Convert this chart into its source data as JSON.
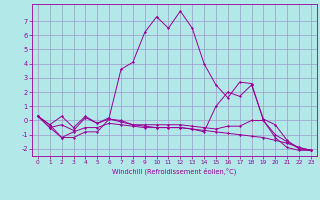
{
  "xlabel": "Windchill (Refroidissement éolien,°C)",
  "background_color": "#b2e8e8",
  "grid_color": "#9999cc",
  "line_color": "#990099",
  "x": [
    0,
    1,
    2,
    3,
    4,
    5,
    6,
    7,
    8,
    9,
    10,
    11,
    12,
    13,
    14,
    15,
    16,
    17,
    18,
    19,
    20,
    21,
    22,
    23
  ],
  "line1": [
    0.3,
    -0.5,
    -0.3,
    -0.7,
    0.2,
    -0.2,
    0.1,
    -0.1,
    -0.3,
    -0.4,
    -0.5,
    -0.5,
    -0.5,
    -0.6,
    -0.7,
    -0.8,
    -0.9,
    -1.0,
    -1.1,
    -1.2,
    -1.4,
    -1.6,
    -1.9,
    -2.1
  ],
  "line2": [
    0.3,
    -0.5,
    -1.2,
    -1.2,
    -0.8,
    -0.8,
    0.1,
    0.0,
    -0.3,
    -0.3,
    -0.3,
    -0.3,
    -0.3,
    -0.4,
    -0.5,
    -0.6,
    -0.4,
    -0.4,
    0.0,
    0.0,
    -1.0,
    -1.5,
    -1.9,
    -2.1
  ],
  "line3": [
    0.3,
    -0.3,
    0.3,
    -0.5,
    0.3,
    -0.2,
    0.2,
    3.6,
    4.1,
    6.2,
    7.3,
    6.5,
    7.7,
    6.5,
    4.0,
    2.5,
    1.6,
    2.7,
    2.6,
    0.0,
    -1.2,
    -1.9,
    -2.1,
    -2.1
  ],
  "line4": [
    0.3,
    -0.3,
    -1.2,
    -0.8,
    -0.5,
    -0.5,
    -0.2,
    -0.3,
    -0.4,
    -0.5,
    -0.5,
    -0.5,
    -0.5,
    -0.6,
    -0.8,
    1.0,
    2.0,
    1.7,
    2.5,
    0.1,
    -0.3,
    -1.4,
    -2.0,
    -2.1
  ],
  "ylim": [
    -2.5,
    8.2
  ],
  "xlim": [
    -0.5,
    23.5
  ],
  "yticks": [
    -2,
    -1,
    0,
    1,
    2,
    3,
    4,
    5,
    6,
    7
  ],
  "xticks": [
    0,
    1,
    2,
    3,
    4,
    5,
    6,
    7,
    8,
    9,
    10,
    11,
    12,
    13,
    14,
    15,
    16,
    17,
    18,
    19,
    20,
    21,
    22,
    23
  ]
}
